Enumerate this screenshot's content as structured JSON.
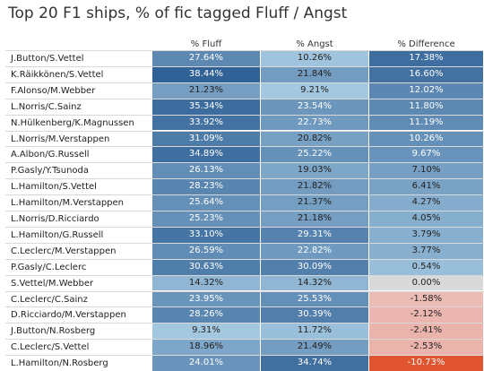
{
  "title": "Top 20 F1 ships, % of fic tagged Fluff / Angst",
  "chart_data": {
    "type": "table",
    "columns": [
      "% Fluff",
      "% Angst",
      "% Difference"
    ],
    "rows": [
      {
        "ship": "J.Button/S.Vettel",
        "fluff": "27.64%",
        "angst": "10.26%",
        "diff": "17.38%"
      },
      {
        "ship": "K.Räikkönen/S.Vettel",
        "fluff": "38.44%",
        "angst": "21.84%",
        "diff": "16.60%"
      },
      {
        "ship": "F.Alonso/M.Webber",
        "fluff": "21.23%",
        "angst": "9.21%",
        "diff": "12.02%"
      },
      {
        "ship": "L.Norris/C.Sainz",
        "fluff": "35.34%",
        "angst": "23.54%",
        "diff": "11.80%"
      },
      {
        "ship": "N.Hülkenberg/K.Magnussen",
        "fluff": "33.92%",
        "angst": "22.73%",
        "diff": "11.19%"
      },
      {
        "ship": "L.Norris/M.Verstappen",
        "fluff": "31.09%",
        "angst": "20.82%",
        "diff": "10.26%"
      },
      {
        "ship": "A.Albon/G.Russell",
        "fluff": "34.89%",
        "angst": "25.22%",
        "diff": "9.67%"
      },
      {
        "ship": "P.Gasly/Y.Tsunoda",
        "fluff": "26.13%",
        "angst": "19.03%",
        "diff": "7.10%"
      },
      {
        "ship": "L.Hamilton/S.Vettel",
        "fluff": "28.23%",
        "angst": "21.82%",
        "diff": "6.41%"
      },
      {
        "ship": "L.Hamilton/M.Verstappen",
        "fluff": "25.64%",
        "angst": "21.37%",
        "diff": "4.27%"
      },
      {
        "ship": "L.Norris/D.Ricciardo",
        "fluff": "25.23%",
        "angst": "21.18%",
        "diff": "4.05%"
      },
      {
        "ship": "L.Hamilton/G.Russell",
        "fluff": "33.10%",
        "angst": "29.31%",
        "diff": "3.79%"
      },
      {
        "ship": "C.Leclerc/M.Verstappen",
        "fluff": "26.59%",
        "angst": "22.82%",
        "diff": "3.77%"
      },
      {
        "ship": "P.Gasly/C.Leclerc",
        "fluff": "30.63%",
        "angst": "30.09%",
        "diff": "0.54%"
      },
      {
        "ship": "S.Vettel/M.Webber",
        "fluff": "14.32%",
        "angst": "14.32%",
        "diff": "0.00%"
      },
      {
        "ship": "C.Leclerc/C.Sainz",
        "fluff": "23.95%",
        "angst": "25.53%",
        "diff": "-1.58%"
      },
      {
        "ship": "D.Ricciardo/M.Verstappen",
        "fluff": "28.26%",
        "angst": "30.39%",
        "diff": "-2.12%"
      },
      {
        "ship": "J.Button/N.Rosberg",
        "fluff": "9.31%",
        "angst": "11.72%",
        "diff": "-2.41%"
      },
      {
        "ship": "C.Leclerc/S.Vettel",
        "fluff": "18.96%",
        "angst": "21.49%",
        "diff": "-2.53%"
      },
      {
        "ship": "L.Hamilton/N.Rosberg",
        "fluff": "24.01%",
        "angst": "34.74%",
        "diff": "-10.73%"
      }
    ]
  },
  "colors": {
    "blue_light": "#a9cce3",
    "blue_dark": "#2b5d93",
    "neutral": "#d9d9d9",
    "red_light": "#ecc4c2",
    "red_dark": "#e0532f"
  }
}
